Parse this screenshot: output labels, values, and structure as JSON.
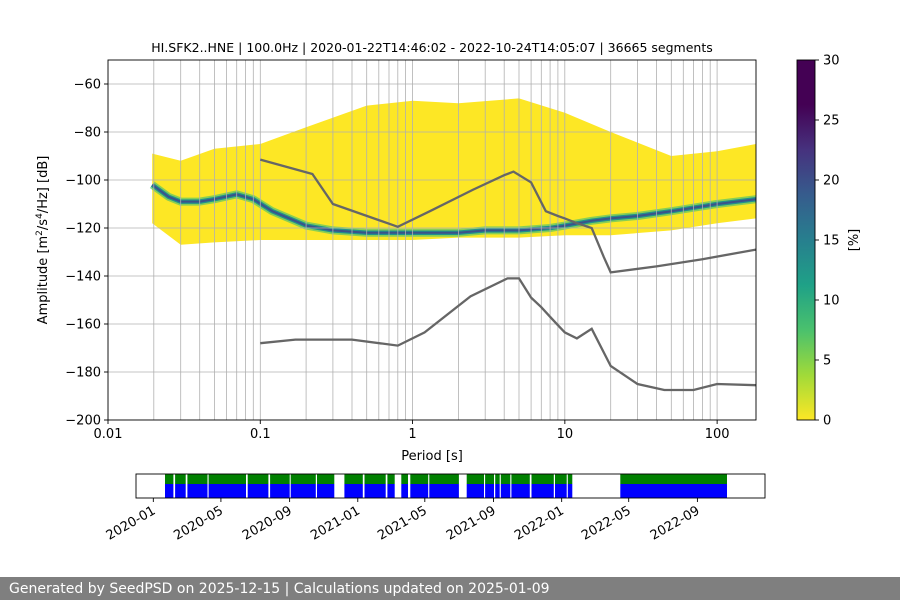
{
  "figure": {
    "footer": "Generated by SeedPSD on 2025-12-15 | Calculations updated on 2025-01-09"
  },
  "chart_data": [
    {
      "type": "heatmap",
      "title": "HI.SFK2..HNE | 100.0Hz | 2020-01-22T14:46:02 - 2022-10-24T14:05:07 | 36665 segments",
      "xlabel": "Period [s]",
      "ylabel_parts": [
        "Amplitude [m",
        "2",
        "/s",
        "4",
        "/Hz] [dB]"
      ],
      "x_scale": "log",
      "xlim": [
        0.01,
        180
      ],
      "ylim": [
        -200,
        -50
      ],
      "x_ticks": [
        {
          "value": 0.01,
          "label": "0.01"
        },
        {
          "value": 0.1,
          "label": "0.1"
        },
        {
          "value": 1,
          "label": "1"
        },
        {
          "value": 10,
          "label": "10"
        },
        {
          "value": 100,
          "label": "100"
        }
      ],
      "y_ticks": [
        {
          "value": -60,
          "label": "−60"
        },
        {
          "value": -80,
          "label": "−80"
        },
        {
          "value": -100,
          "label": "−100"
        },
        {
          "value": -120,
          "label": "−120"
        },
        {
          "value": -140,
          "label": "−140"
        },
        {
          "value": -160,
          "label": "−160"
        },
        {
          "value": -180,
          "label": "−180"
        },
        {
          "value": -200,
          "label": "−200"
        }
      ],
      "grid": true,
      "colormap": "viridis_r",
      "colorbar": {
        "label": "[%]",
        "range": [
          0,
          30
        ],
        "ticks": [
          {
            "value": 0,
            "label": "0"
          },
          {
            "value": 5,
            "label": "5"
          },
          {
            "value": 10,
            "label": "10"
          },
          {
            "value": 15,
            "label": "15"
          },
          {
            "value": 20,
            "label": "20"
          },
          {
            "value": 25,
            "label": "25"
          },
          {
            "value": 30,
            "label": "30"
          }
        ]
      },
      "psd_extent": {
        "period": [
          0.0195,
          0.03,
          0.05,
          0.1,
          0.2,
          0.5,
          1,
          2,
          5,
          10,
          20,
          50,
          100,
          180
        ],
        "upper_db": [
          -89,
          -92,
          -87,
          -85,
          -78,
          -69,
          -67,
          -68,
          -66,
          -72,
          -80,
          -90,
          -88,
          -85
        ],
        "lower_db": [
          -118,
          -127,
          -126,
          -125,
          -125,
          -125,
          -125,
          -124,
          -124,
          -123,
          -123,
          -121,
          -118,
          -116
        ]
      },
      "psd_mode": {
        "period": [
          0.0195,
          0.025,
          0.03,
          0.04,
          0.05,
          0.07,
          0.09,
          0.12,
          0.2,
          0.3,
          0.5,
          1,
          2,
          3,
          5,
          8,
          10,
          15,
          20,
          30,
          50,
          100,
          180
        ],
        "db": [
          -102,
          -107,
          -109,
          -109,
          -108,
          -106,
          -108,
          -113,
          -119,
          -121,
          -122,
          -122,
          -122,
          -121,
          -121,
          -120,
          -119,
          -117,
          -116,
          -115,
          -113,
          -110,
          -108
        ]
      },
      "series": [
        {
          "x": [
            0.1,
            0.22,
            0.3,
            0.8,
            1.3,
            2.5,
            4,
            4.6,
            6,
            7.5,
            9,
            10,
            12,
            15,
            18,
            20,
            40,
            80,
            180
          ],
          "y": [
            -91.5,
            -97.5,
            -110,
            -119.5,
            -113,
            -104,
            -98,
            -96.5,
            -101,
            -113,
            -115,
            -116,
            -118,
            -120,
            -132,
            -138.5,
            -136,
            -133,
            -129
          ]
        },
        {
          "x": [
            0.1,
            0.17,
            0.4,
            0.8,
            1.2,
            2.4,
            4.2,
            5,
            6,
            7,
            8,
            9,
            10,
            12,
            15,
            20,
            30,
            45,
            70,
            100,
            180
          ],
          "y": [
            -168,
            -166.5,
            -166.5,
            -169,
            -163.5,
            -148.5,
            -141,
            -141,
            -149,
            -153,
            -157,
            -160.5,
            -163.5,
            -166,
            -162,
            -177.5,
            -185,
            -187.5,
            -187.5,
            -185,
            -185.5
          ]
        }
      ]
    },
    {
      "type": "timeline",
      "x_ticks": [
        "2020-01",
        "2020-05",
        "2020-09",
        "2021-01",
        "2021-05",
        "2021-09",
        "2022-01",
        "2022-05",
        "2022-09"
      ],
      "range": [
        "2019-12-01",
        "2022-12-31"
      ],
      "colors": {
        "available": "#008000",
        "coverage": "#0000ff"
      },
      "available_periods": [
        [
          "2020-01-22",
          "2020-02-06"
        ],
        [
          "2020-02-09",
          "2020-02-28"
        ],
        [
          "2020-03-02",
          "2020-04-07"
        ],
        [
          "2020-04-09",
          "2020-06-15"
        ],
        [
          "2020-06-18",
          "2020-07-25"
        ],
        [
          "2020-07-28",
          "2020-09-01"
        ],
        [
          "2020-09-03",
          "2020-10-18"
        ],
        [
          "2020-10-20",
          "2020-11-20"
        ],
        [
          "2020-12-08",
          "2021-01-10"
        ],
        [
          "2021-01-13",
          "2021-02-20"
        ],
        [
          "2021-02-23",
          "2021-03-08"
        ],
        [
          "2021-03-20",
          "2021-04-01"
        ],
        [
          "2021-04-05",
          "2021-05-07"
        ],
        [
          "2021-05-09",
          "2021-07-01"
        ],
        [
          "2021-07-15",
          "2021-08-15"
        ],
        [
          "2021-08-17",
          "2021-09-02"
        ],
        [
          "2021-09-04",
          "2021-09-12"
        ],
        [
          "2021-09-14",
          "2021-10-01"
        ],
        [
          "2021-10-03",
          "2021-11-05"
        ],
        [
          "2021-11-08",
          "2021-12-18"
        ],
        [
          "2021-12-20",
          "2022-01-10"
        ],
        [
          "2022-01-12",
          "2022-01-20"
        ],
        [
          "2022-04-16",
          "2022-10-24"
        ]
      ]
    }
  ]
}
